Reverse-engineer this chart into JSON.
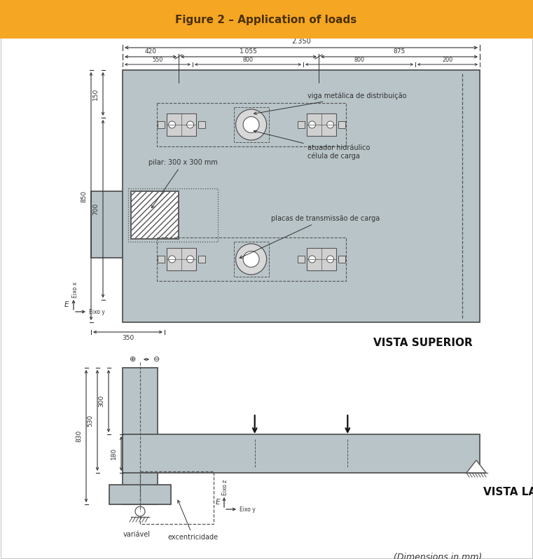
{
  "title": "Figure 2 – Application of loads",
  "title_bg": "#F5A623",
  "title_color": "#4A3000",
  "bg_color": "#FFFFFF",
  "slab_color": "#B8C4C8",
  "slab_border": "#555555",
  "dim_color": "#333333",
  "fig_width": 7.61,
  "fig_height": 7.98,
  "vista_superior_label": "VISTA SUPERIOR",
  "vista_lateral_label": "VISTA LATERAL",
  "dimensions_label": "(Dimensions in mm)",
  "label_pilar": "pilar: 300 x 300 mm",
  "label_viga": "viga metálica de distribuição",
  "label_atuador": "atuador hidráulico\ncélula de carga",
  "label_placas": "placas de transmissão de carga",
  "label_ecc": "excentricidade",
  "label_var": "variável",
  "label_eixo_x": "Eixo x",
  "label_eixo_y": "Eixo y",
  "label_eixo_z": "Eixo z",
  "label_E": "E"
}
